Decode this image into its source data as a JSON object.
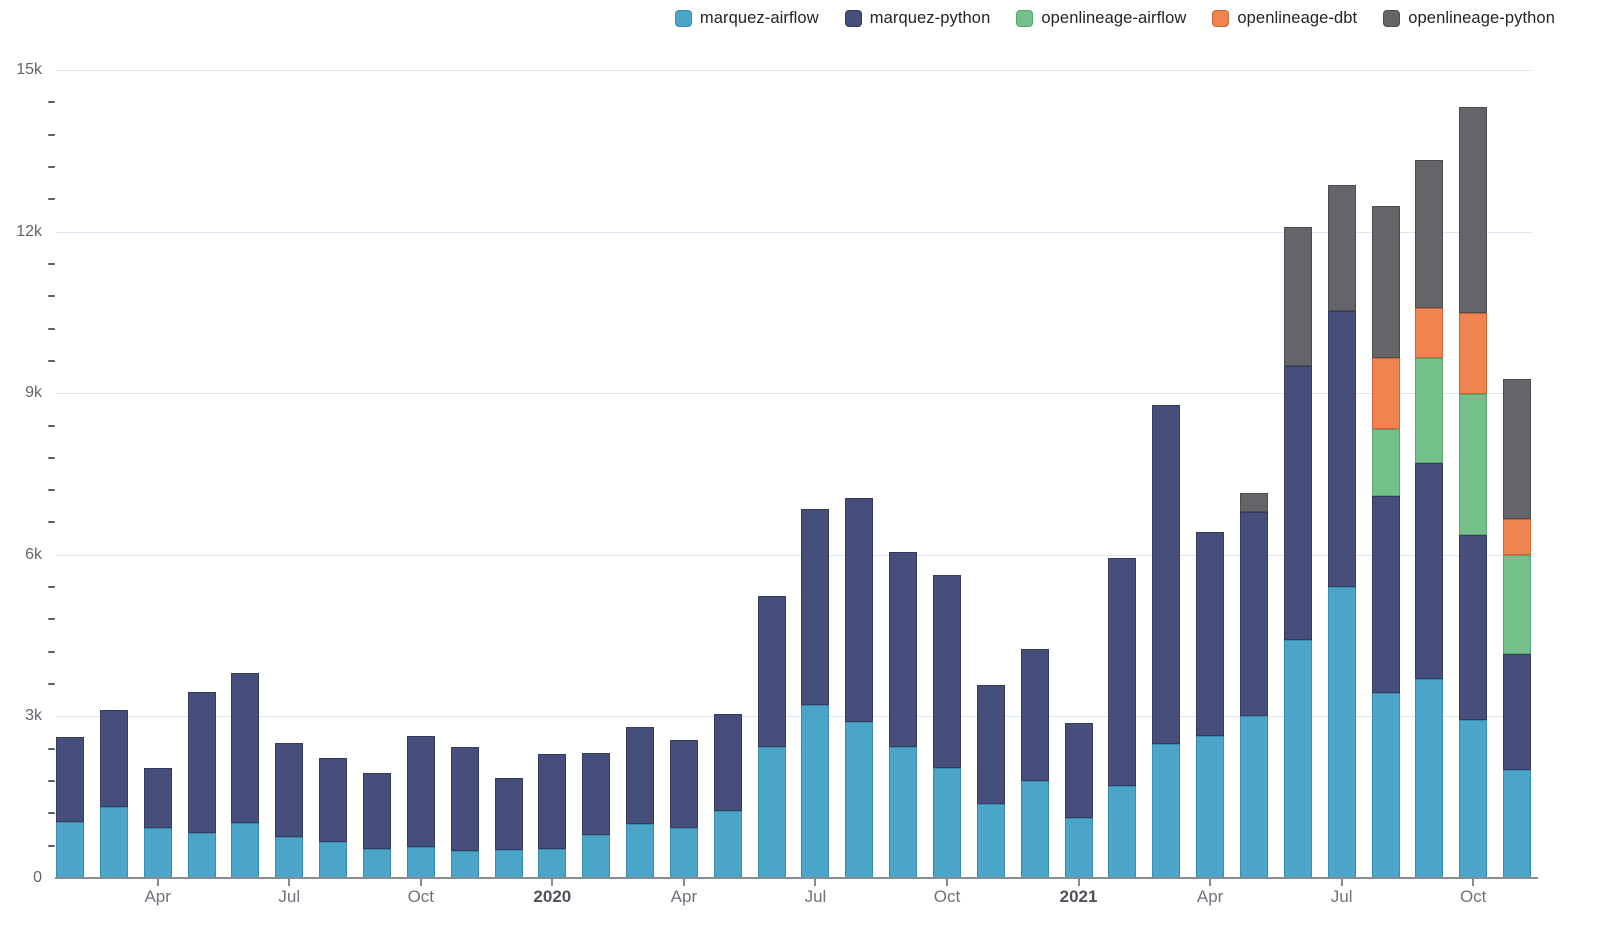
{
  "legend": {
    "items_note": "legend items mirror chart_data.series order"
  },
  "chart_data": {
    "type": "bar",
    "stacked": true,
    "title": "",
    "xlabel": "",
    "ylabel": "",
    "legend_position": "top-right",
    "grid": "horizontal-major",
    "y_axis": {
      "min": 0,
      "max": 15000,
      "major_step": 3000,
      "minor_step": 600,
      "major_labels": [
        "0",
        "3k",
        "6k",
        "9k",
        "12k",
        "15k"
      ]
    },
    "x_ticks": [
      {
        "index": 2,
        "label": "Apr",
        "bold": false
      },
      {
        "index": 5,
        "label": "Jul",
        "bold": false
      },
      {
        "index": 8,
        "label": "Oct",
        "bold": false
      },
      {
        "index": 11,
        "label": "2020",
        "bold": true
      },
      {
        "index": 14,
        "label": "Apr",
        "bold": false
      },
      {
        "index": 17,
        "label": "Jul",
        "bold": false
      },
      {
        "index": 20,
        "label": "Oct",
        "bold": false
      },
      {
        "index": 23,
        "label": "2021",
        "bold": true
      },
      {
        "index": 26,
        "label": "Apr",
        "bold": false
      },
      {
        "index": 29,
        "label": "Jul",
        "bold": false
      },
      {
        "index": 32,
        "label": "Oct",
        "bold": false
      }
    ],
    "months": [
      "2019-02",
      "2019-03",
      "2019-04",
      "2019-05",
      "2019-06",
      "2019-07",
      "2019-08",
      "2019-09",
      "2019-10",
      "2019-11",
      "2019-12",
      "2020-01",
      "2020-02",
      "2020-03",
      "2020-04",
      "2020-05",
      "2020-06",
      "2020-07",
      "2020-08",
      "2020-09",
      "2020-10",
      "2020-11",
      "2020-12",
      "2021-01",
      "2021-02",
      "2021-03",
      "2021-04",
      "2021-05",
      "2021-06",
      "2021-07",
      "2021-08",
      "2021-09",
      "2021-10",
      "2021-11"
    ],
    "series": [
      {
        "name": "marquez-airflow",
        "color": "#4AA5C8",
        "border_color": "#3D8BAB",
        "values": [
          1040,
          1310,
          930,
          830,
          1020,
          760,
          670,
          540,
          570,
          500,
          520,
          540,
          800,
          1000,
          930,
          1240,
          2430,
          3220,
          2890,
          2430,
          2040,
          1370,
          1800,
          1110,
          1700,
          2480,
          2630,
          3000,
          4410,
          5410,
          3440,
          3690,
          2930,
          2000
        ]
      },
      {
        "name": "marquez-python",
        "color": "#464E7C",
        "border_color": "#353B60",
        "values": [
          1570,
          1800,
          1110,
          2630,
          2780,
          1740,
          1550,
          1400,
          2060,
          1930,
          1330,
          1760,
          1520,
          1800,
          1630,
          1800,
          2810,
          3630,
          4170,
          3630,
          3590,
          2220,
          2460,
          1760,
          4240,
          6300,
          3800,
          3800,
          5090,
          5110,
          3650,
          4020,
          3440,
          2150
        ]
      },
      {
        "name": "openlineage-airflow",
        "color": "#73C08A",
        "border_color": "#58A471",
        "values": [
          0,
          0,
          0,
          0,
          0,
          0,
          0,
          0,
          0,
          0,
          0,
          0,
          0,
          0,
          0,
          0,
          0,
          0,
          0,
          0,
          0,
          0,
          0,
          0,
          0,
          0,
          0,
          0,
          0,
          0,
          1240,
          1940,
          2610,
          1850
        ]
      },
      {
        "name": "openlineage-dbt",
        "color": "#EF8450",
        "border_color": "#D06334",
        "values": [
          0,
          0,
          0,
          0,
          0,
          0,
          0,
          0,
          0,
          0,
          0,
          0,
          0,
          0,
          0,
          0,
          0,
          0,
          0,
          0,
          0,
          0,
          0,
          0,
          0,
          0,
          0,
          0,
          0,
          0,
          1320,
          940,
          1500,
          670
        ]
      },
      {
        "name": "openlineage-python",
        "color": "#636568",
        "border_color": "#4B4D50",
        "values": [
          0,
          0,
          0,
          0,
          0,
          0,
          0,
          0,
          0,
          0,
          0,
          0,
          0,
          0,
          0,
          0,
          0,
          0,
          0,
          0,
          0,
          0,
          0,
          0,
          0,
          0,
          0,
          350,
          2590,
          2350,
          2830,
          2740,
          3830,
          2590
        ]
      }
    ]
  }
}
